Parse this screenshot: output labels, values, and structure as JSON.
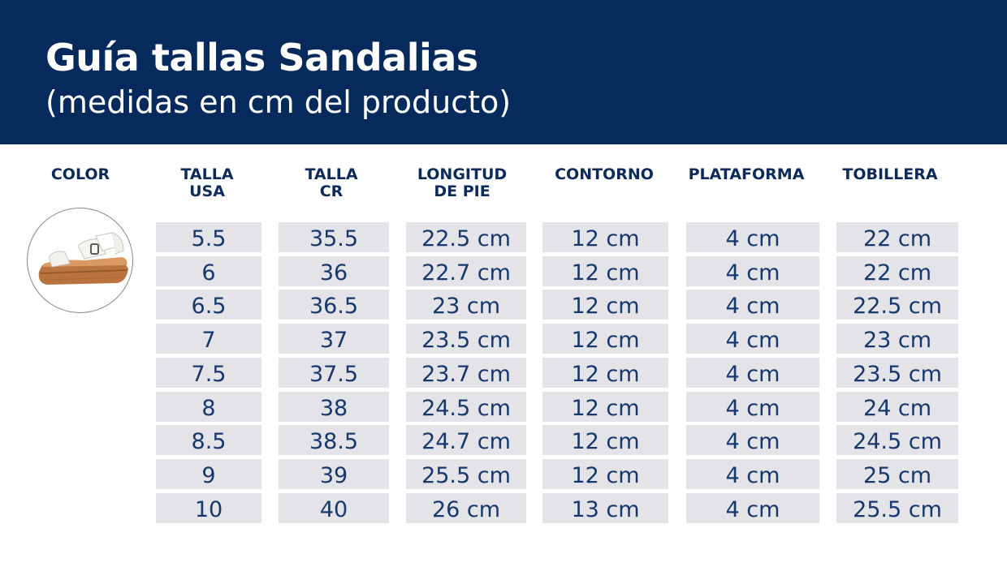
{
  "header": {
    "title": "Guía tallas Sandalias",
    "subtitle": "(medidas en cm del producto)"
  },
  "columns": {
    "color": "COLOR",
    "talla_usa": [
      "TALLA",
      "USA"
    ],
    "talla_cr": [
      "TALLA",
      "CR"
    ],
    "longitud": [
      "LONGITUD",
      "DE PIE"
    ],
    "contorno": "CONTORNO",
    "plataforma": "PLATAFORMA",
    "tobillera": "TOBILLERA"
  },
  "colors": {
    "header_bg": "#062a5c",
    "cell_bg": "#e3e3e8",
    "cell_text": "#16386d",
    "heading_text": "#0d2b5a"
  },
  "rows": [
    [
      "5.5",
      "35.5",
      "22.5 cm",
      "12 cm",
      "4 cm",
      "22 cm"
    ],
    [
      "6",
      "36",
      "22.7 cm",
      "12 cm",
      "4 cm",
      "22 cm"
    ],
    [
      "6.5",
      "36.5",
      "23 cm",
      "12 cm",
      "4 cm",
      "22.5 cm"
    ],
    [
      "7",
      "37",
      "23.5 cm",
      "12 cm",
      "4 cm",
      "23 cm"
    ],
    [
      "7.5",
      "37.5",
      "23.7 cm",
      "12 cm",
      "4 cm",
      "23.5 cm"
    ],
    [
      "8",
      "38",
      "24.5 cm",
      "12 cm",
      "4 cm",
      "24 cm"
    ],
    [
      "8.5",
      "38.5",
      "24.7 cm",
      "12 cm",
      "4 cm",
      "24.5 cm"
    ],
    [
      "9",
      "39",
      "25.5 cm",
      "12 cm",
      "4 cm",
      "25 cm"
    ],
    [
      "10",
      "40",
      "26 cm",
      "13 cm",
      "4 cm",
      "25.5 cm"
    ]
  ]
}
